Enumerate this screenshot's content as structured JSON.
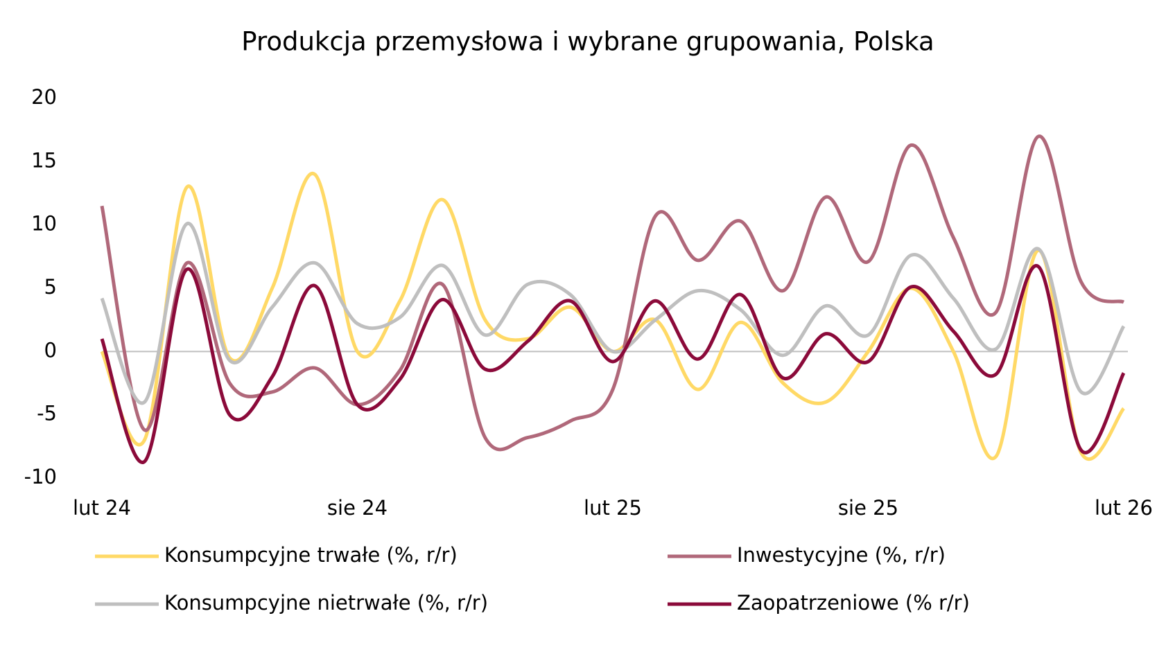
{
  "chart_data": {
    "type": "line",
    "title": "Produkcja przemysłowa i wybrane grupowania, Polska",
    "categories": [
      "lut 24",
      null,
      null,
      null,
      null,
      null,
      "sie 24",
      null,
      null,
      null,
      null,
      null,
      "lut 25",
      null,
      null,
      null,
      null,
      null,
      "sie 25",
      null,
      null,
      null,
      null,
      null,
      "lut 26"
    ],
    "series": [
      {
        "name": "Konsumpcyjne trwałe (%, r/r)",
        "color": "#FFD966",
        "values": [
          0,
          -7,
          13,
          -0.5,
          5,
          14,
          0,
          4,
          12,
          2.5,
          1,
          3.5,
          0,
          2.5,
          -3,
          2.3,
          -2.5,
          -4,
          0,
          5,
          0,
          -8.3,
          8,
          -8,
          -4.5
        ]
      },
      {
        "name": "Inwestycyjne (%, r/r)",
        "color": "#B0687A",
        "values": [
          11.5,
          -6.2,
          7,
          -2.5,
          -3.2,
          -1.3,
          -4.2,
          -1.5,
          5.3,
          -6.8,
          -6.8,
          -5.5,
          -3,
          10.7,
          7.2,
          10.3,
          4.8,
          12.2,
          7.1,
          16.3,
          9,
          3.1,
          17,
          5.5,
          3.9
        ]
      },
      {
        "name": "Konsumpcyjne nietrwałe (%, r/r)",
        "color": "#BFBFBF",
        "values": [
          4.2,
          -4,
          10.1,
          -0.7,
          3.5,
          7,
          2.2,
          2.7,
          6.8,
          1.3,
          5.3,
          4.5,
          0,
          2.5,
          4.8,
          3.3,
          -0.3,
          3.6,
          1.3,
          7.6,
          4.2,
          0.2,
          8.1,
          -3.2,
          2
        ]
      },
      {
        "name": "Zaopatrzeniowe (% r/r)",
        "color": "#8B0A3A",
        "values": [
          1,
          -8.7,
          6.5,
          -5,
          -2,
          5.2,
          -4.2,
          -2.2,
          4.1,
          -1.4,
          0.8,
          4,
          -0.8,
          4,
          -0.6,
          4.5,
          -2.1,
          1.4,
          -0.8,
          5.1,
          1.6,
          -1.8,
          6.7,
          -7.8,
          -1.7
        ]
      }
    ],
    "ylim": [
      -10,
      20
    ],
    "yticks": [
      -10,
      -5,
      0,
      5,
      10,
      15,
      20
    ],
    "zero_line": true,
    "grid": false,
    "legend": "bottom"
  }
}
